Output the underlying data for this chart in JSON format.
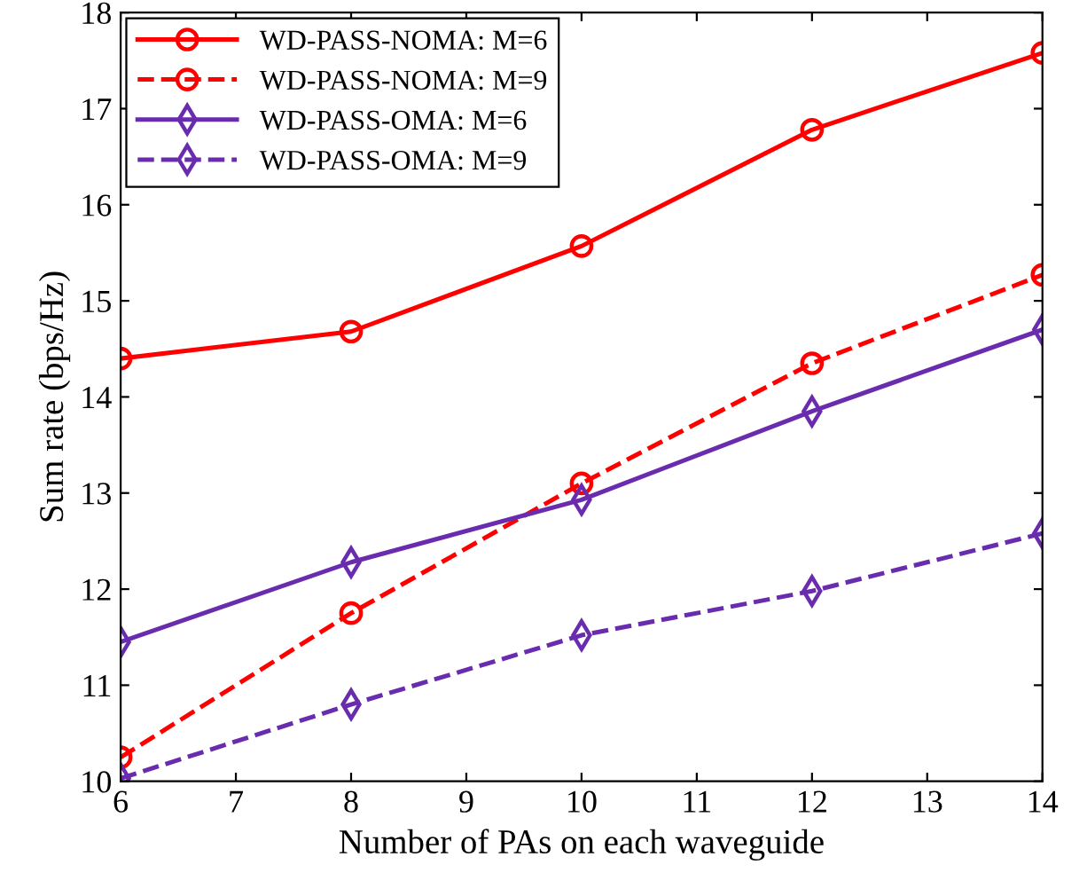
{
  "chart_data": {
    "type": "line",
    "xlabel": "Number of PAs on each waveguide",
    "ylabel": "Sum rate (bps/Hz)",
    "x": [
      6,
      8,
      10,
      12,
      14
    ],
    "series": [
      {
        "name": "WD-PASS-NOMA: M=6",
        "color": "#ff0000",
        "marker": "circle",
        "line_style": "solid",
        "values": [
          14.4,
          14.68,
          15.57,
          16.78,
          17.58
        ]
      },
      {
        "name": "WD-PASS-NOMA: M=9",
        "color": "#ff0000",
        "marker": "circle",
        "line_style": "dashed",
        "values": [
          10.25,
          11.75,
          13.1,
          14.35,
          15.27
        ]
      },
      {
        "name": "WD-PASS-OMA: M=6",
        "color": "#6a2cae",
        "marker": "diamond",
        "line_style": "solid",
        "values": [
          11.45,
          12.28,
          12.93,
          13.85,
          14.7
        ]
      },
      {
        "name": "WD-PASS-OMA: M=9",
        "color": "#6a2cae",
        "marker": "diamond",
        "line_style": "dashed",
        "values": [
          10.03,
          10.8,
          11.52,
          11.98,
          12.58
        ]
      }
    ],
    "xlim": [
      6,
      14
    ],
    "xticks": [
      6,
      7,
      8,
      9,
      10,
      11,
      12,
      13,
      14
    ],
    "ylim": [
      10,
      18
    ],
    "yticks": [
      10,
      11,
      12,
      13,
      14,
      15,
      16,
      17,
      18
    ],
    "grid": false,
    "legend": "top left"
  }
}
